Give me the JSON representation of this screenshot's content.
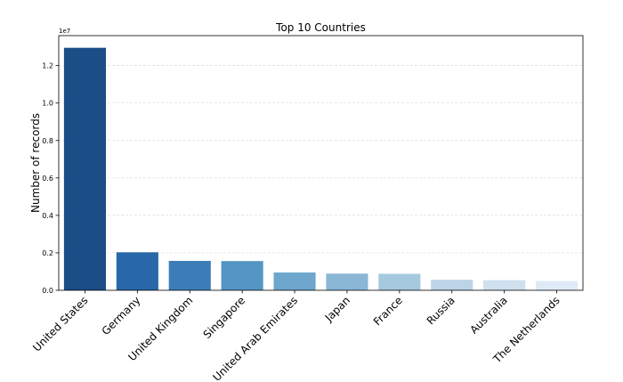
{
  "chart_data": {
    "type": "bar",
    "title": "Top 10 Countries",
    "xlabel": "",
    "ylabel": "Number of records",
    "y_offset_label": "1e7",
    "categories": [
      "United States",
      "Germany",
      "United Kingdom",
      "Singapore",
      "United Arab Emirates",
      "Japan",
      "France",
      "Russia",
      "Australia",
      "The Netherlands"
    ],
    "values": [
      12950000,
      2030000,
      1570000,
      1560000,
      950000,
      890000,
      880000,
      560000,
      540000,
      500000
    ],
    "colors": [
      "#1b4d86",
      "#2868a8",
      "#3c7db8",
      "#5595c4",
      "#6ea6cd",
      "#8ab7d6",
      "#a7c9df",
      "#bdd4e7",
      "#cfe0ef",
      "#deebf6"
    ],
    "ylim": [
      0,
      13600000
    ],
    "yticks": [
      0,
      2000000,
      4000000,
      6000000,
      8000000,
      10000000,
      12000000
    ],
    "ytick_labels": [
      "0.0",
      "0.2",
      "0.4",
      "0.6",
      "0.8",
      "1.0",
      "1.2"
    ],
    "grid": "horizontal dashed",
    "legend": "none"
  }
}
